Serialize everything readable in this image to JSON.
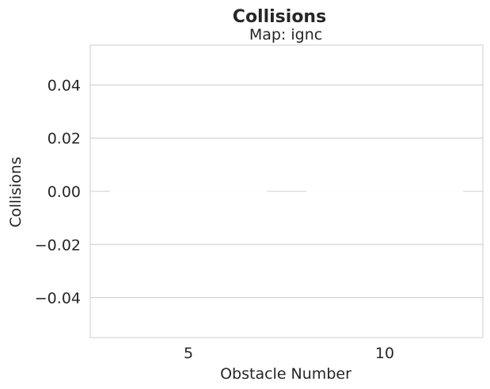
{
  "chart_data": {
    "type": "bar",
    "title": "Collisions",
    "subtitle": "Map: ignc",
    "xlabel": "Obstacle Number",
    "ylabel": "Collisions",
    "categories": [
      "5",
      "10"
    ],
    "values": [
      0,
      0
    ],
    "ylim": [
      -0.055,
      0.055
    ],
    "yticks": [
      -0.04,
      -0.02,
      0.0,
      0.02,
      0.04
    ],
    "ytick_labels": [
      "−0.04",
      "−0.02",
      "0.00",
      "0.02",
      "0.04"
    ],
    "grid": true,
    "colors": {
      "grid": "#cccccc",
      "frame": "#cccccc",
      "text": "#262626",
      "bar": "#fdfdfd"
    }
  }
}
